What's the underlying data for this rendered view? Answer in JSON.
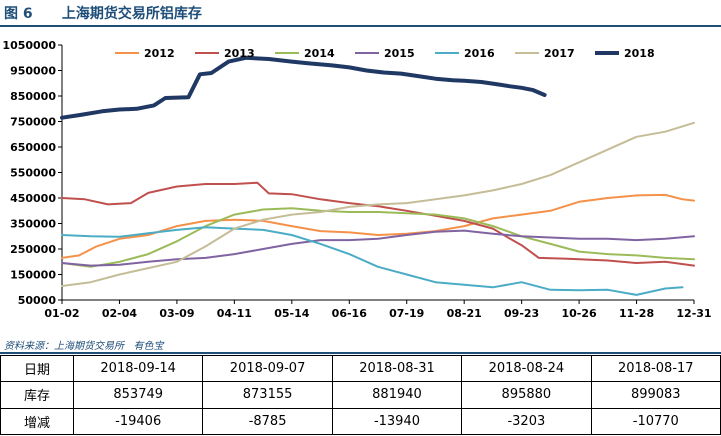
{
  "figure": {
    "title": "图 6      上海期货交易所铝库存",
    "source": "资料来源：上海期货交易所   有色宝"
  },
  "chart_data": {
    "type": "line",
    "x_ticks": [
      "01-02",
      "02-04",
      "03-09",
      "04-11",
      "05-14",
      "06-16",
      "07-19",
      "08-21",
      "09-23",
      "10-26",
      "11-28",
      "12-31"
    ],
    "y_ticks": [
      "1050000",
      "950000",
      "850000",
      "750000",
      "650000",
      "550000",
      "450000",
      "350000",
      "250000",
      "150000",
      "50000"
    ],
    "ylim": [
      50000,
      1050000
    ],
    "xlim": [
      0,
      11
    ],
    "grid": false,
    "legend_position": "top",
    "series": [
      {
        "name": "2012",
        "color": "#f4914a",
        "width": 2,
        "points": [
          [
            0,
            215000
          ],
          [
            0.3,
            225000
          ],
          [
            0.6,
            260000
          ],
          [
            1,
            290000
          ],
          [
            1.5,
            305000
          ],
          [
            2,
            340000
          ],
          [
            2.5,
            360000
          ],
          [
            3,
            365000
          ],
          [
            3.5,
            360000
          ],
          [
            4,
            340000
          ],
          [
            4.5,
            320000
          ],
          [
            5,
            315000
          ],
          [
            5.5,
            305000
          ],
          [
            6,
            310000
          ],
          [
            6.5,
            320000
          ],
          [
            7,
            340000
          ],
          [
            7.5,
            370000
          ],
          [
            8,
            385000
          ],
          [
            8.5,
            400000
          ],
          [
            9,
            435000
          ],
          [
            9.5,
            450000
          ],
          [
            10,
            460000
          ],
          [
            10.5,
            462000
          ],
          [
            10.8,
            445000
          ],
          [
            11,
            440000
          ]
        ]
      },
      {
        "name": "2013",
        "color": "#c0504d",
        "width": 2,
        "points": [
          [
            0,
            450000
          ],
          [
            0.4,
            445000
          ],
          [
            0.8,
            425000
          ],
          [
            1.2,
            430000
          ],
          [
            1.5,
            470000
          ],
          [
            2,
            495000
          ],
          [
            2.5,
            505000
          ],
          [
            3,
            505000
          ],
          [
            3.4,
            510000
          ],
          [
            3.6,
            468000
          ],
          [
            4,
            465000
          ],
          [
            4.5,
            445000
          ],
          [
            5,
            430000
          ],
          [
            5.5,
            418000
          ],
          [
            6,
            400000
          ],
          [
            6.5,
            380000
          ],
          [
            7,
            360000
          ],
          [
            7.5,
            330000
          ],
          [
            7.8,
            290000
          ],
          [
            8,
            265000
          ],
          [
            8.3,
            215000
          ],
          [
            8.8,
            212000
          ],
          [
            9.5,
            205000
          ],
          [
            10,
            195000
          ],
          [
            10.5,
            200000
          ],
          [
            11,
            185000
          ]
        ]
      },
      {
        "name": "2014",
        "color": "#9bbb59",
        "width": 2,
        "points": [
          [
            0,
            195000
          ],
          [
            0.5,
            180000
          ],
          [
            1,
            200000
          ],
          [
            1.5,
            230000
          ],
          [
            2,
            280000
          ],
          [
            2.5,
            340000
          ],
          [
            3,
            385000
          ],
          [
            3.5,
            405000
          ],
          [
            4,
            410000
          ],
          [
            4.5,
            400000
          ],
          [
            5,
            395000
          ],
          [
            5.5,
            395000
          ],
          [
            6,
            390000
          ],
          [
            6.5,
            385000
          ],
          [
            7,
            370000
          ],
          [
            7.5,
            340000
          ],
          [
            8,
            300000
          ],
          [
            8.5,
            270000
          ],
          [
            9,
            240000
          ],
          [
            9.5,
            230000
          ],
          [
            10,
            225000
          ],
          [
            10.5,
            215000
          ],
          [
            11,
            210000
          ]
        ]
      },
      {
        "name": "2015",
        "color": "#8064a2",
        "width": 2,
        "points": [
          [
            0,
            195000
          ],
          [
            0.5,
            185000
          ],
          [
            1,
            188000
          ],
          [
            1.5,
            200000
          ],
          [
            2,
            210000
          ],
          [
            2.5,
            215000
          ],
          [
            3,
            230000
          ],
          [
            3.5,
            250000
          ],
          [
            4,
            270000
          ],
          [
            4.5,
            285000
          ],
          [
            5,
            285000
          ],
          [
            5.5,
            290000
          ],
          [
            6,
            305000
          ],
          [
            6.5,
            318000
          ],
          [
            7,
            322000
          ],
          [
            7.5,
            310000
          ],
          [
            8,
            300000
          ],
          [
            8.5,
            295000
          ],
          [
            9,
            290000
          ],
          [
            9.5,
            290000
          ],
          [
            10,
            285000
          ],
          [
            10.5,
            290000
          ],
          [
            11,
            300000
          ]
        ]
      },
      {
        "name": "2016",
        "color": "#4bacc6",
        "width": 2,
        "points": [
          [
            0,
            305000
          ],
          [
            0.5,
            300000
          ],
          [
            1,
            298000
          ],
          [
            1.5,
            312000
          ],
          [
            2,
            325000
          ],
          [
            2.5,
            335000
          ],
          [
            3,
            330000
          ],
          [
            3.5,
            325000
          ],
          [
            4,
            305000
          ],
          [
            4.5,
            270000
          ],
          [
            5,
            230000
          ],
          [
            5.5,
            180000
          ],
          [
            6,
            150000
          ],
          [
            6.5,
            120000
          ],
          [
            7,
            110000
          ],
          [
            7.5,
            100000
          ],
          [
            8,
            120000
          ],
          [
            8.5,
            90000
          ],
          [
            9,
            88000
          ],
          [
            9.5,
            90000
          ],
          [
            10,
            70000
          ],
          [
            10.5,
            95000
          ],
          [
            10.8,
            100000
          ]
        ]
      },
      {
        "name": "2017",
        "color": "#c4bd97",
        "width": 2,
        "points": [
          [
            0,
            105000
          ],
          [
            0.5,
            120000
          ],
          [
            1,
            150000
          ],
          [
            1.5,
            175000
          ],
          [
            2,
            200000
          ],
          [
            2.5,
            260000
          ],
          [
            3,
            330000
          ],
          [
            3.5,
            365000
          ],
          [
            4,
            385000
          ],
          [
            4.5,
            395000
          ],
          [
            5,
            415000
          ],
          [
            5.5,
            425000
          ],
          [
            6,
            430000
          ],
          [
            6.5,
            445000
          ],
          [
            7,
            460000
          ],
          [
            7.5,
            480000
          ],
          [
            8,
            505000
          ],
          [
            8.5,
            540000
          ],
          [
            9,
            590000
          ],
          [
            9.5,
            640000
          ],
          [
            10,
            690000
          ],
          [
            10.5,
            710000
          ],
          [
            11,
            745000
          ]
        ]
      },
      {
        "name": "2018",
        "color": "#1f3864",
        "width": 4,
        "points": [
          [
            0,
            765000
          ],
          [
            0.3,
            775000
          ],
          [
            0.7,
            790000
          ],
          [
            1,
            797000
          ],
          [
            1.3,
            800000
          ],
          [
            1.6,
            813000
          ],
          [
            1.8,
            842000
          ],
          [
            2.2,
            845000
          ],
          [
            2.4,
            935000
          ],
          [
            2.6,
            940000
          ],
          [
            2.9,
            985000
          ],
          [
            3.2,
            1000000
          ],
          [
            3.6,
            995000
          ],
          [
            4,
            985000
          ],
          [
            4.3,
            978000
          ],
          [
            4.7,
            970000
          ],
          [
            5,
            962000
          ],
          [
            5.3,
            950000
          ],
          [
            5.6,
            942000
          ],
          [
            5.9,
            938000
          ],
          [
            6.2,
            928000
          ],
          [
            6.5,
            918000
          ],
          [
            6.8,
            912000
          ],
          [
            7,
            910000
          ],
          [
            7.3,
            905000
          ],
          [
            7.6,
            895000
          ],
          [
            7.8,
            888000
          ],
          [
            8.0,
            882000
          ],
          [
            8.2,
            873000
          ],
          [
            8.4,
            854000
          ]
        ]
      }
    ]
  },
  "table": {
    "headers": [
      "日期",
      "2018-09-14",
      "2018-09-07",
      "2018-08-31",
      "2018-08-24",
      "2018-08-17"
    ],
    "rows": [
      [
        "库存",
        "853749",
        "873155",
        "881940",
        "895880",
        "899083"
      ],
      [
        "增减",
        "-19406",
        "-8785",
        "-13940",
        "-3203",
        "-10770"
      ]
    ]
  }
}
